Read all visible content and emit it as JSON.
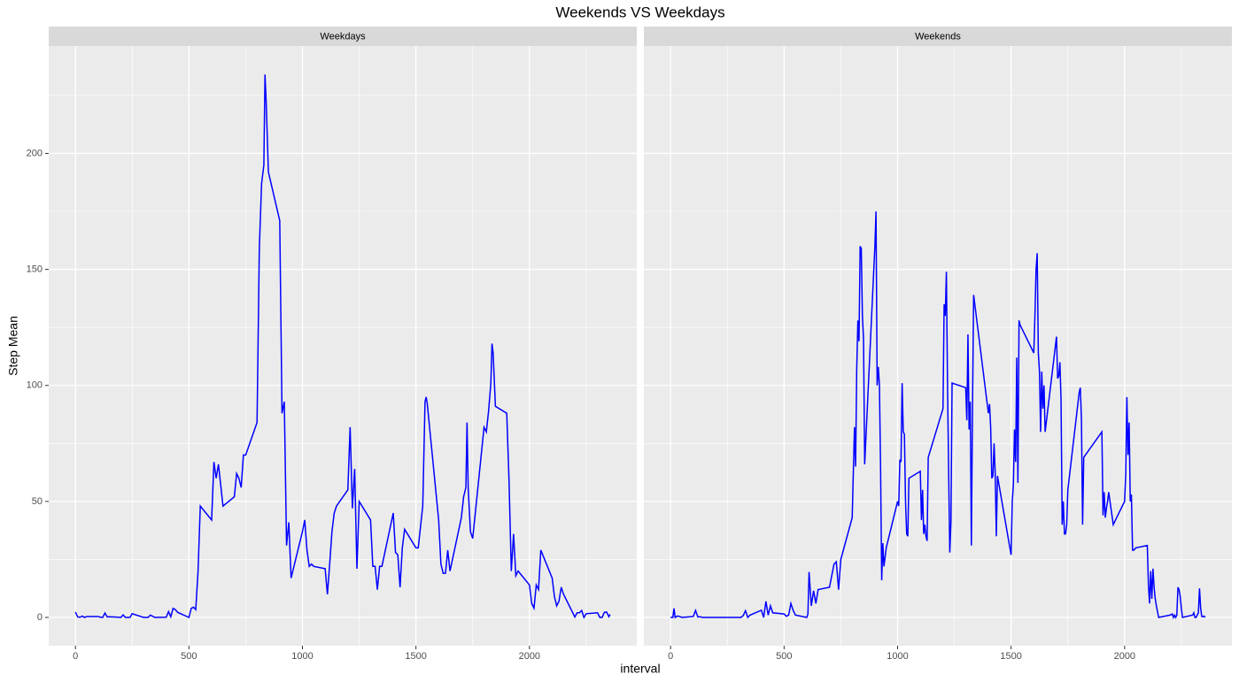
{
  "title": "Weekends VS Weekdays",
  "x_label": "interval",
  "y_label": "Step Mean",
  "chart_data": [
    {
      "type": "line",
      "facet": "Weekdays",
      "color": "#0000ff",
      "grid": true,
      "xlim": [
        -117.75,
        2472.75
      ],
      "ylim": [
        -12.2,
        246.3
      ],
      "xticks": [
        0,
        500,
        1000,
        1500,
        2000
      ],
      "yticks": [
        0,
        50,
        100,
        150,
        200
      ],
      "x": [
        0,
        10,
        20,
        30,
        40,
        50,
        100,
        110,
        120,
        130,
        140,
        150,
        200,
        210,
        220,
        230,
        240,
        250,
        300,
        310,
        320,
        330,
        340,
        350,
        400,
        410,
        420,
        430,
        440,
        450,
        500,
        510,
        520,
        530,
        540,
        550,
        600,
        610,
        620,
        630,
        640,
        650,
        700,
        710,
        720,
        730,
        740,
        750,
        800,
        810,
        820,
        830,
        835,
        840,
        850,
        900,
        910,
        920,
        930,
        940,
        950,
        1000,
        1010,
        1020,
        1030,
        1040,
        1050,
        1100,
        1110,
        1120,
        1130,
        1140,
        1150,
        1200,
        1210,
        1220,
        1230,
        1240,
        1250,
        1300,
        1310,
        1320,
        1330,
        1340,
        1350,
        1400,
        1410,
        1420,
        1430,
        1440,
        1450,
        1500,
        1510,
        1520,
        1530,
        1540,
        1545,
        1550,
        1600,
        1610,
        1620,
        1630,
        1640,
        1650,
        1700,
        1710,
        1720,
        1725,
        1730,
        1740,
        1750,
        1800,
        1810,
        1820,
        1830,
        1835,
        1840,
        1850,
        1900,
        1910,
        1920,
        1930,
        1940,
        1950,
        2000,
        2010,
        2020,
        2030,
        2040,
        2050,
        2100,
        2110,
        2120,
        2130,
        2140,
        2150,
        2200,
        2210,
        2220,
        2230,
        2240,
        2250,
        2300,
        2310,
        2320,
        2330,
        2340,
        2350,
        2355
      ],
      "values": [
        2.3,
        0.2,
        0.1,
        0.6,
        0,
        0.4,
        0.4,
        0.1,
        0,
        1.9,
        0.2,
        0.3,
        0,
        1.1,
        0,
        0,
        0,
        1.6,
        0,
        0,
        0,
        1,
        0.5,
        0,
        0.1,
        2.5,
        0.3,
        3.9,
        3.4,
        2.2,
        0,
        3.9,
        4.4,
        3.4,
        19.7,
        48,
        42,
        67,
        60,
        66,
        57,
        48,
        52,
        62,
        60,
        56,
        70,
        70,
        84,
        159,
        187,
        195,
        234,
        223,
        192,
        171,
        88,
        93,
        31,
        41,
        17,
        37,
        42,
        29,
        22,
        23,
        22,
        21,
        10,
        23,
        37,
        45,
        48,
        55,
        82,
        47,
        64,
        21,
        50,
        42,
        22,
        22,
        12,
        22,
        22,
        45,
        28,
        27,
        13,
        30,
        38,
        30,
        30,
        39,
        48,
        93,
        95,
        92,
        42,
        23,
        19,
        19,
        29,
        20,
        43,
        52,
        56,
        84,
        56,
        37,
        34,
        82,
        80,
        89,
        101,
        118,
        114,
        91,
        88,
        59,
        20,
        36,
        18,
        20,
        14,
        6,
        4,
        14,
        12,
        29,
        17,
        9,
        5,
        7,
        13,
        10,
        0.2,
        2,
        2,
        3,
        0,
        1.6,
        2,
        0,
        0,
        2.2,
        2.3,
        0.3,
        1.3
      ]
    },
    {
      "type": "line",
      "facet": "Weekends",
      "color": "#0000ff",
      "grid": true,
      "xlim": [
        -117.75,
        2472.75
      ],
      "ylim": [
        -12.2,
        246.3
      ],
      "xticks": [
        0,
        500,
        1000,
        1500,
        2000
      ],
      "yticks": [
        0,
        50,
        100,
        150,
        200
      ],
      "x": [
        0,
        10,
        15,
        20,
        30,
        40,
        50,
        100,
        110,
        120,
        130,
        140,
        150,
        200,
        210,
        220,
        230,
        240,
        250,
        300,
        310,
        320,
        330,
        340,
        350,
        400,
        410,
        420,
        430,
        440,
        450,
        500,
        510,
        520,
        530,
        540,
        550,
        600,
        605,
        610,
        620,
        630,
        640,
        650,
        700,
        710,
        720,
        730,
        740,
        750,
        800,
        810,
        815,
        820,
        825,
        830,
        835,
        840,
        845,
        850,
        855,
        900,
        905,
        910,
        915,
        920,
        925,
        930,
        935,
        940,
        950,
        1000,
        1005,
        1010,
        1015,
        1020,
        1025,
        1030,
        1035,
        1040,
        1045,
        1050,
        1100,
        1105,
        1110,
        1115,
        1120,
        1125,
        1130,
        1135,
        1200,
        1205,
        1210,
        1215,
        1220,
        1225,
        1230,
        1235,
        1240,
        1300,
        1305,
        1310,
        1315,
        1320,
        1325,
        1330,
        1335,
        1400,
        1405,
        1410,
        1415,
        1420,
        1425,
        1430,
        1435,
        1440,
        1500,
        1505,
        1510,
        1515,
        1520,
        1525,
        1530,
        1535,
        1540,
        1600,
        1605,
        1610,
        1615,
        1620,
        1625,
        1630,
        1635,
        1640,
        1645,
        1650,
        1700,
        1705,
        1710,
        1715,
        1720,
        1725,
        1730,
        1735,
        1740,
        1745,
        1750,
        1800,
        1805,
        1810,
        1815,
        1820,
        1900,
        1905,
        1910,
        1915,
        1920,
        1925,
        1930,
        1940,
        1950,
        2000,
        2005,
        2010,
        2015,
        2020,
        2025,
        2030,
        2035,
        2040,
        2050,
        2100,
        2105,
        2110,
        2115,
        2120,
        2125,
        2130,
        2135,
        2140,
        2150,
        2200,
        2210,
        2215,
        2220,
        2225,
        2230,
        2235,
        2240,
        2245,
        2250,
        2255,
        2300,
        2305,
        2310,
        2315,
        2320,
        2325,
        2330,
        2335,
        2340,
        2345,
        2350,
        2355
      ],
      "values": [
        0,
        0,
        3.9,
        0,
        0.6,
        0.4,
        0,
        0.4,
        3,
        0.2,
        0.3,
        0,
        0,
        0,
        0,
        0,
        0,
        0,
        0,
        0,
        0,
        0.8,
        2.9,
        0,
        1,
        3.1,
        0,
        6.9,
        1,
        5,
        2,
        1.5,
        0.5,
        1,
        6,
        3,
        1,
        0,
        1.5,
        19.6,
        5,
        11.5,
        6,
        12,
        13,
        18,
        23,
        24,
        12,
        25,
        43,
        82,
        65,
        107,
        128,
        119,
        160,
        159,
        130,
        120,
        66,
        160,
        175,
        100,
        108,
        100,
        65,
        16,
        32,
        22,
        30,
        50,
        48,
        68,
        67,
        101,
        80,
        79,
        50,
        36,
        35,
        60,
        63,
        42,
        55,
        36,
        40,
        35,
        33,
        69,
        90,
        135,
        130,
        149,
        100,
        62,
        28,
        41,
        101,
        99,
        85,
        122,
        81,
        93,
        31,
        90,
        139,
        88,
        92,
        82,
        60,
        61,
        75,
        62,
        35,
        61,
        27,
        50,
        57,
        81,
        67,
        112,
        58,
        128,
        126,
        114,
        130,
        150,
        157,
        114,
        106,
        80,
        106,
        90,
        100,
        80,
        121,
        103,
        104,
        110,
        94,
        40,
        50,
        36,
        36,
        40,
        55,
        97,
        99,
        85,
        40,
        69,
        80,
        44,
        54,
        43,
        47,
        50,
        54,
        47,
        40,
        50,
        62,
        95,
        70,
        84,
        50,
        53,
        29,
        29,
        30,
        31,
        14,
        6,
        20,
        8,
        21,
        13,
        8,
        5,
        0,
        1,
        1.5,
        0,
        1,
        0,
        1,
        13,
        12,
        9,
        4,
        0,
        1,
        2,
        0,
        0,
        1,
        2,
        12.5,
        4,
        0.4,
        0.3,
        0.6,
        0
      ]
    }
  ]
}
